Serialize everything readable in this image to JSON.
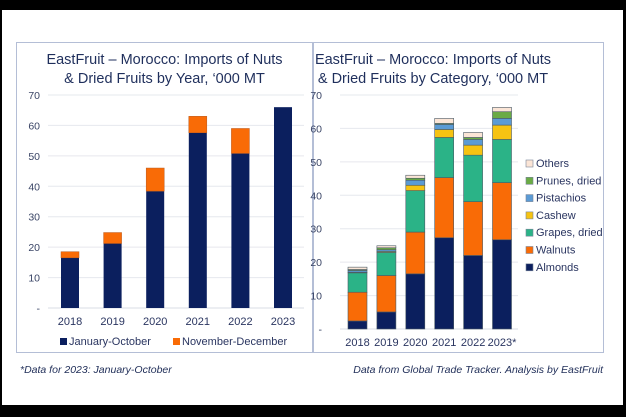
{
  "footer": {
    "note": "*Data for 2023: January-October",
    "source": "Data from Global Trade Tracker. Analysis by EastFruit"
  },
  "chart_data": [
    {
      "type": "bar",
      "stacked": true,
      "title": "EastFruit – Morocco: Imports of Nuts & Dried Fruits by Year, ‘000 MT",
      "title_lines": [
        "EastFruit – Morocco: Imports of Nuts",
        "& Dried Fruits by Year, ‘000 MT"
      ],
      "xlabel": "",
      "ylabel": "",
      "ylim": [
        0,
        70
      ],
      "yticks": [
        "-",
        "10",
        "20",
        "30",
        "40",
        "50",
        "60",
        "70"
      ],
      "grid": true,
      "legend": "bottom",
      "categories": [
        "2018",
        "2019",
        "2020",
        "2021",
        "2022",
        "2023"
      ],
      "series": [
        {
          "name": "January-October",
          "color": "#0b1f5e",
          "values": [
            16.5,
            21.2,
            38.4,
            57.6,
            50.8,
            66.0
          ]
        },
        {
          "name": "November-December",
          "color": "#f96b06",
          "values": [
            2.0,
            3.6,
            7.6,
            5.4,
            8.2,
            0
          ]
        }
      ]
    },
    {
      "type": "bar",
      "stacked": true,
      "title": "EastFruit – Morocco: Imports of Nuts & Dried Fruits by Category, ‘000 MT",
      "title_lines": [
        "EastFruit – Morocco: Imports of Nuts",
        "& Dried Fruits by Category, ‘000 MT"
      ],
      "xlabel": "",
      "ylabel": "",
      "ylim": [
        0,
        70
      ],
      "yticks": [
        "-",
        "10",
        "20",
        "30",
        "40",
        "50",
        "60",
        "70"
      ],
      "grid": true,
      "legend": "right",
      "categories": [
        "2018",
        "2019",
        "2020",
        "2021",
        "2022",
        "2023*"
      ],
      "series": [
        {
          "name": "Almonds",
          "color": "#0b1f5e",
          "values": [
            2.4,
            5.1,
            16.5,
            27.3,
            22.0,
            26.7
          ]
        },
        {
          "name": "Walnuts",
          "color": "#f96b06",
          "values": [
            8.6,
            10.9,
            12.5,
            18.0,
            16.1,
            17.1
          ]
        },
        {
          "name": "Grapes, dried",
          "color": "#2bb387",
          "values": [
            5.8,
            6.9,
            12.4,
            12.0,
            13.9,
            12.9
          ]
        },
        {
          "name": "Cashew",
          "color": "#f6c312",
          "values": [
            0.2,
            0.3,
            1.6,
            2.4,
            3.0,
            4.3
          ]
        },
        {
          "name": "Pistachios",
          "color": "#5b9bd5",
          "values": [
            0.5,
            0.5,
            1.5,
            1.5,
            1.7,
            2.0
          ]
        },
        {
          "name": "Prunes, dried",
          "color": "#6aab45",
          "values": [
            0.3,
            0.6,
            0.6,
            0.3,
            0.6,
            2.0
          ]
        },
        {
          "name": "Others",
          "color": "#fbe5d6",
          "values": [
            0.7,
            0.6,
            0.9,
            1.5,
            1.5,
            1.3
          ]
        }
      ]
    }
  ]
}
